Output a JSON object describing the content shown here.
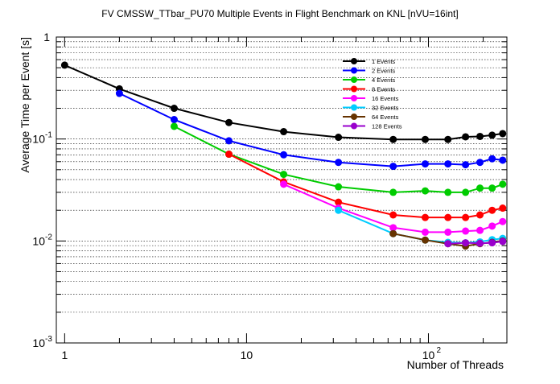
{
  "chart_data": {
    "type": "line",
    "title": "FV CMSSW_TTbar_PU70 Multiple Events in Flight Benchmark on KNL [nVU=16int]",
    "xlabel": "Number of Threads",
    "ylabel": "Average Time per Event [s]",
    "x_scale": "log",
    "y_scale": "log",
    "xlim": [
      0.9,
      270
    ],
    "ylim": [
      0.001,
      1
    ],
    "grid": "y-major-and-minor",
    "legend_position": "top-right",
    "x_ticks": [
      {
        "value": 1,
        "label": "1"
      },
      {
        "value": 10,
        "label": "10"
      },
      {
        "value": 100,
        "label": "10",
        "exp": "2"
      }
    ],
    "y_ticks": [
      {
        "value": 0.001,
        "label": "10",
        "exp": "-3"
      },
      {
        "value": 0.01,
        "label": "10",
        "exp": "-2"
      },
      {
        "value": 0.1,
        "label": "10",
        "exp": "-1"
      },
      {
        "value": 1,
        "label": "1"
      }
    ],
    "series": [
      {
        "name": "1 Events",
        "color": "#000000",
        "x": [
          1,
          2,
          4,
          8,
          16,
          32,
          64,
          96,
          128,
          160,
          192,
          224,
          256
        ],
        "y": [
          0.53,
          0.31,
          0.2,
          0.145,
          0.118,
          0.104,
          0.099,
          0.099,
          0.099,
          0.105,
          0.106,
          0.109,
          0.113
        ]
      },
      {
        "name": "2 Events",
        "color": "#0000ff",
        "x": [
          2,
          4,
          8,
          16,
          32,
          64,
          96,
          128,
          160,
          192,
          224,
          256
        ],
        "y": [
          0.28,
          0.155,
          0.096,
          0.07,
          0.059,
          0.054,
          0.057,
          0.057,
          0.056,
          0.059,
          0.064,
          0.062
        ]
      },
      {
        "name": "4 Events",
        "color": "#00cc00",
        "x": [
          4,
          8,
          16,
          32,
          64,
          96,
          128,
          160,
          192,
          224,
          256
        ],
        "y": [
          0.133,
          0.071,
          0.045,
          0.034,
          0.03,
          0.031,
          0.03,
          0.03,
          0.033,
          0.033,
          0.036
        ]
      },
      {
        "name": "8 Events",
        "color": "#ff0000",
        "x": [
          8,
          16,
          32,
          64,
          96,
          128,
          160,
          192,
          224,
          256
        ],
        "y": [
          0.071,
          0.038,
          0.024,
          0.018,
          0.017,
          0.017,
          0.017,
          0.018,
          0.02,
          0.021
        ]
      },
      {
        "name": "16 Events",
        "color": "#ff00ff",
        "x": [
          16,
          32,
          64,
          96,
          128,
          160,
          192,
          224,
          256
        ],
        "y": [
          0.036,
          0.021,
          0.0135,
          0.0122,
          0.0122,
          0.0125,
          0.0127,
          0.014,
          0.0155
        ]
      },
      {
        "name": "32 Events",
        "color": "#00ccff",
        "x": [
          32,
          64,
          96,
          128,
          160,
          192,
          224,
          256
        ],
        "y": [
          0.02,
          0.0118,
          0.0102,
          0.0097,
          0.0096,
          0.0098,
          0.0103,
          0.0106
        ]
      },
      {
        "name": "64 Events",
        "color": "#663300",
        "x": [
          64,
          96,
          128,
          160,
          192,
          224,
          256
        ],
        "y": [
          0.0118,
          0.0102,
          0.0094,
          0.0089,
          0.0094,
          0.0097,
          0.01
        ]
      },
      {
        "name": "128 Events",
        "color": "#9900cc",
        "x": [
          128,
          160,
          192,
          224,
          256
        ],
        "y": [
          0.0094,
          0.0096,
          0.0095,
          0.0096,
          0.0099
        ]
      }
    ]
  }
}
